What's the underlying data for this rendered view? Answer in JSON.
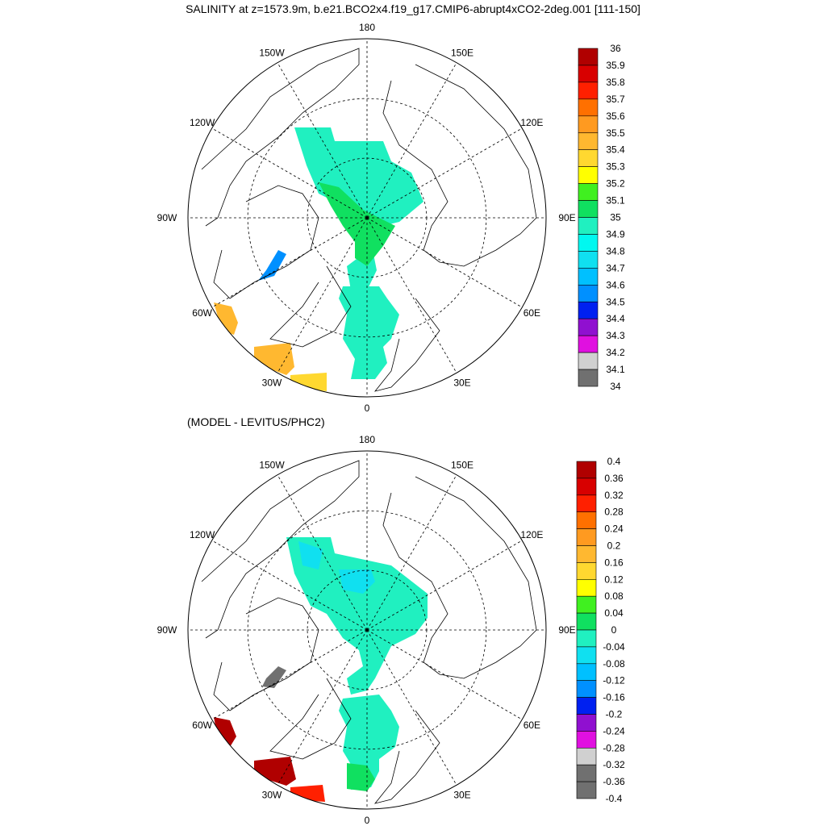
{
  "title": "SALINITY at z=1573.9m, b.e21.BCO2x4.f19_g17.CMIP6-abrupt4xCO2-2deg.001 [111-150]",
  "subtitle": "(MODEL - LEVITUS/PHC2)",
  "chart_data": [
    {
      "type": "heatmap",
      "projection": "north-polar-stereographic",
      "variable": "Salinity",
      "longitude_labels": [
        "180",
        "150E",
        "120E",
        "90E",
        "60E",
        "30E",
        "0",
        "30W",
        "60W",
        "90W",
        "120W",
        "150W"
      ],
      "colorbar": {
        "ticks": [
          "36",
          "35.9",
          "35.8",
          "35.7",
          "35.6",
          "35.5",
          "35.4",
          "35.3",
          "35.2",
          "35.1",
          "35",
          "34.9",
          "34.8",
          "34.7",
          "34.6",
          "34.5",
          "34.4",
          "34.3",
          "34.2",
          "34.1",
          "34"
        ],
        "colors": [
          "#b00000",
          "#d80000",
          "#ff2000",
          "#ff7000",
          "#ff9a20",
          "#ffb830",
          "#ffd830",
          "#ffff00",
          "#40f020",
          "#10e060",
          "#20f0c0",
          "#00f8f0",
          "#10e0f0",
          "#00c0ff",
          "#0090ff",
          "#0020f0",
          "#9010d0",
          "#e010e0",
          "#d0d0d0",
          "#707070"
        ]
      },
      "regions": [
        {
          "name": "arctic-basin",
          "value": 34.9
        },
        {
          "name": "central-patch",
          "value": 35.0
        },
        {
          "name": "nordic-seas",
          "value": 34.9
        },
        {
          "name": "labrador-sea",
          "value": 34.5
        },
        {
          "name": "north-atlantic-a",
          "value": 35.4
        },
        {
          "name": "north-atlantic-b",
          "value": 35.4
        },
        {
          "name": "north-atlantic-c",
          "value": 35.3
        }
      ]
    },
    {
      "type": "heatmap",
      "projection": "north-polar-stereographic",
      "variable": "Salinity difference (model - Levitus/PHC2)",
      "longitude_labels": [
        "180",
        "150E",
        "120E",
        "90E",
        "60E",
        "30E",
        "0",
        "30W",
        "60W",
        "90W",
        "120W",
        "150W"
      ],
      "colorbar": {
        "ticks": [
          "0.4",
          "0.36",
          "0.32",
          "0.28",
          "0.24",
          "0.2",
          "0.16",
          "0.12",
          "0.08",
          "0.04",
          "0",
          "-0.04",
          "-0.08",
          "-0.12",
          "-0.16",
          "-0.2",
          "-0.24",
          "-0.28",
          "-0.32",
          "-0.36",
          "-0.4"
        ],
        "colors": [
          "#b00000",
          "#d80000",
          "#ff2000",
          "#ff7000",
          "#ff9a20",
          "#ffb830",
          "#ffd830",
          "#ffff00",
          "#40f020",
          "#10e060",
          "#20f0c0",
          "#10e0f0",
          "#00c0ff",
          "#0090ff",
          "#0020f0",
          "#9010d0",
          "#e010e0",
          "#d0d0d0",
          "#707070",
          "#707070"
        ]
      },
      "regions": [
        {
          "name": "arctic-basin",
          "value": -0.02
        },
        {
          "name": "canada-basin-patch",
          "value": -0.06
        },
        {
          "name": "makarov-patch",
          "value": -0.06
        },
        {
          "name": "nordic-seas",
          "value": -0.02
        },
        {
          "name": "greenland-sea-patch",
          "value": 0.02
        },
        {
          "name": "labrador-sea",
          "value": -0.38
        },
        {
          "name": "north-atlantic-a",
          "value": 0.38
        },
        {
          "name": "north-atlantic-b",
          "value": 0.38
        },
        {
          "name": "north-atlantic-c",
          "value": 0.31
        }
      ]
    }
  ]
}
